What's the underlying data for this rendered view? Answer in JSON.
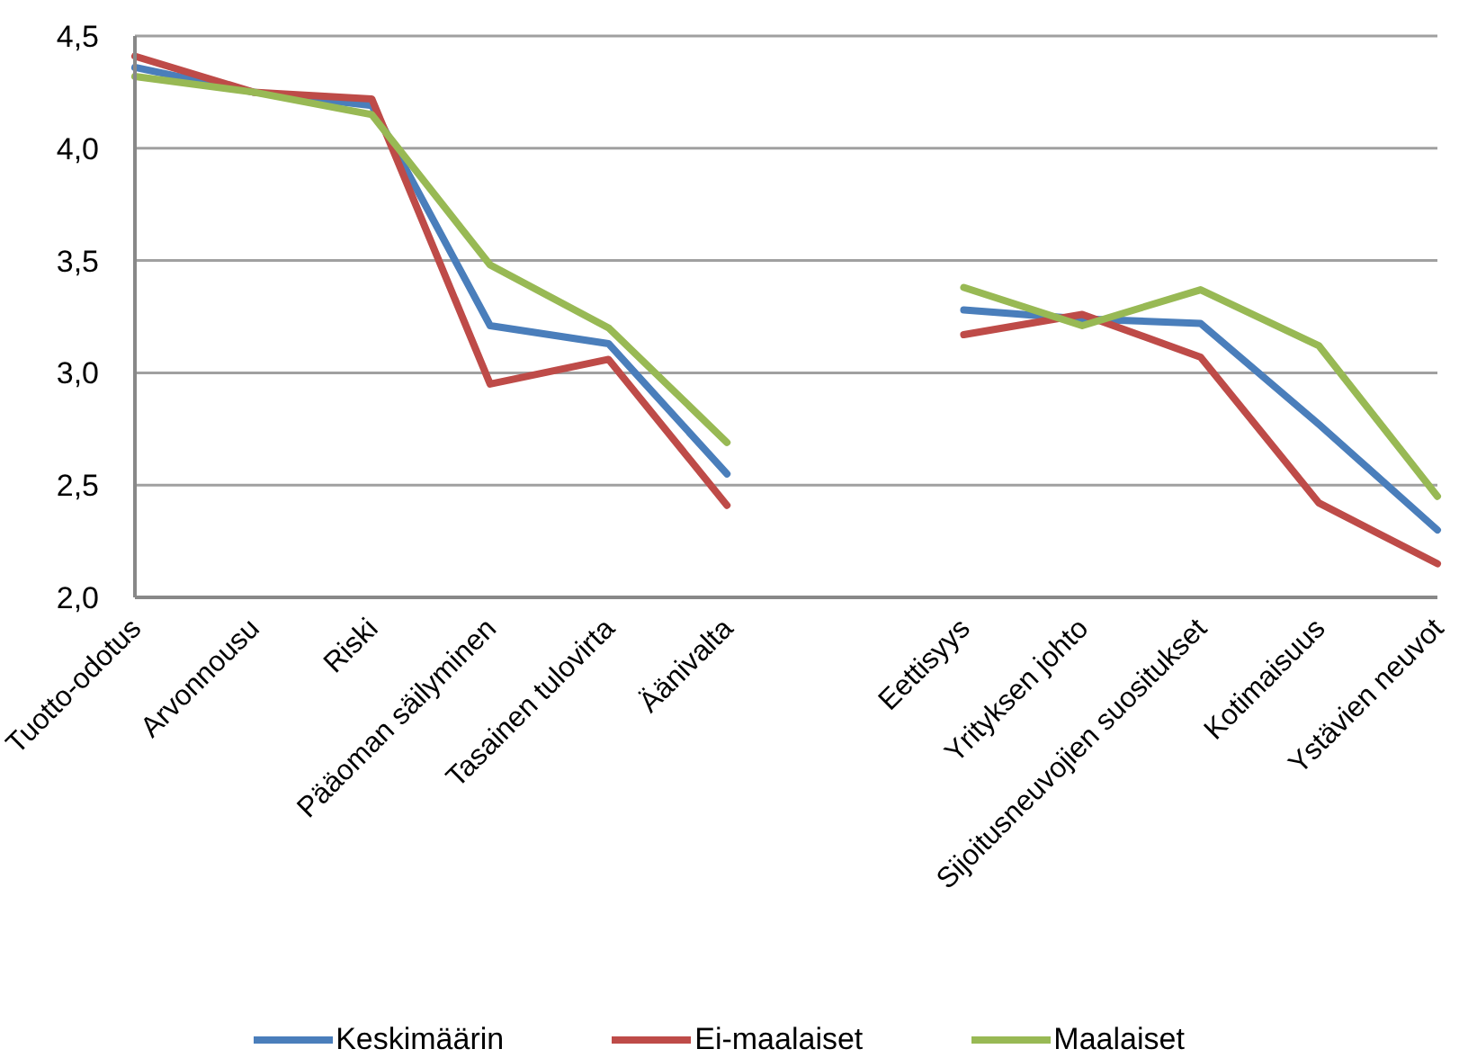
{
  "chart_data": {
    "type": "line",
    "categories": [
      "Tuotto-odotus",
      "Arvonnousu",
      "Riski",
      "Pääoman säilyminen",
      "Tasainen tulovirta",
      "Äänivalta",
      null,
      "Eettisyys",
      "Yrityksen johto",
      "Sijoitusneuvojien suositukset",
      "Kotimaisuus",
      "Ystävien neuvot"
    ],
    "series": [
      {
        "name": "Keskimäärin",
        "color": "#4a7ebb",
        "values": [
          4.36,
          4.25,
          4.19,
          3.21,
          3.13,
          2.55,
          null,
          3.28,
          3.24,
          3.22,
          2.77,
          2.3
        ]
      },
      {
        "name": "Ei-maalaiset",
        "color": "#be4b48",
        "values": [
          4.41,
          4.25,
          4.22,
          2.95,
          3.06,
          2.41,
          null,
          3.17,
          3.26,
          3.07,
          2.42,
          2.15
        ]
      },
      {
        "name": "Maalaiset",
        "color": "#98b954",
        "values": [
          4.32,
          4.25,
          4.15,
          3.48,
          3.2,
          2.69,
          null,
          3.38,
          3.21,
          3.37,
          3.12,
          2.45
        ]
      }
    ],
    "ylim": [
      2,
      4.5
    ],
    "yticks": [
      {
        "value": 2,
        "label": "2,0"
      },
      {
        "value": 2.5,
        "label": "2,5"
      },
      {
        "value": 3,
        "label": "3,0"
      },
      {
        "value": 3.5,
        "label": "3,5"
      },
      {
        "value": 4,
        "label": "4,0"
      },
      {
        "value": 4.5,
        "label": "4,5"
      }
    ],
    "grid": "y",
    "legend": "bottom",
    "marker": "none",
    "line_style": "solid"
  }
}
